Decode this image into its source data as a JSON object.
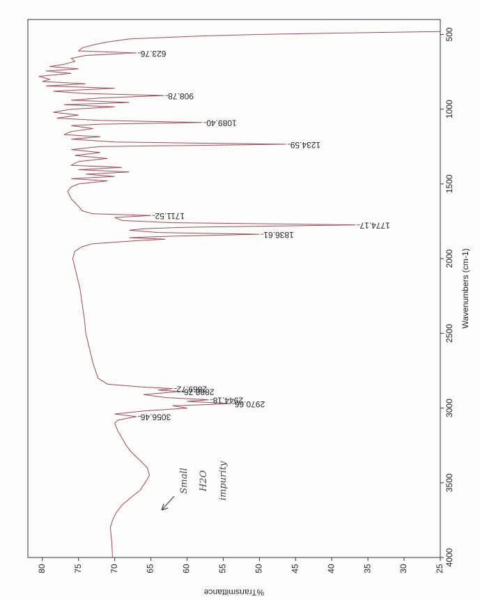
{
  "chart_data": {
    "type": "line",
    "x_label": "Wavenumbers (cm-1)",
    "y_label": "%Transmittance",
    "xlim": [
      4000,
      400
    ],
    "ylim": [
      82,
      25
    ],
    "xticks": [
      500,
      1000,
      1500,
      2000,
      2500,
      3000,
      3500,
      4000
    ],
    "yticks": [
      80,
      75,
      70,
      65,
      60,
      55,
      50,
      45,
      40,
      35,
      30,
      25
    ],
    "series": [
      {
        "color": "#9a4a56",
        "x": [
          4000,
          3900,
          3800,
          3750,
          3700,
          3650,
          3600,
          3550,
          3500,
          3450,
          3400,
          3350,
          3300,
          3250,
          3200,
          3150,
          3100,
          3080,
          3056.46,
          3040,
          3020,
          3000,
          2985,
          2970.66,
          2955,
          2944.18,
          2930,
          2910,
          2888.76,
          2880,
          2869.72,
          2860,
          2840,
          2800,
          2700,
          2600,
          2500,
          2400,
          2300,
          2200,
          2100,
          2000,
          1950,
          1920,
          1900,
          1880,
          1870,
          1860,
          1850,
          1836.61,
          1825,
          1810,
          1800,
          1790,
          1774.17,
          1760,
          1745,
          1725,
          1711.52,
          1700,
          1680,
          1650,
          1600,
          1550,
          1520,
          1500,
          1480,
          1465,
          1450,
          1435,
          1420,
          1405,
          1390,
          1375,
          1350,
          1330,
          1310,
          1290,
          1270,
          1250,
          1234.59,
          1220,
          1200,
          1185,
          1170,
          1150,
          1130,
          1110,
          1100,
          1089.4,
          1075,
          1060,
          1040,
          1020,
          1000,
          985,
          970,
          955,
          940,
          925,
          908.78,
          895,
          880,
          860,
          845,
          830,
          815,
          800,
          780,
          760,
          745,
          730,
          715,
          700,
          680,
          660,
          640,
          623.76,
          610,
          590,
          570,
          550,
          530,
          510,
          500,
          490,
          480
        ],
        "values": [
          70.3,
          70.4,
          70.6,
          70.3,
          69.8,
          69,
          67.8,
          66.5,
          65.8,
          65.2,
          65.5,
          66.5,
          67.6,
          68.4,
          69,
          69.6,
          70,
          69.5,
          67,
          70,
          66,
          60,
          62,
          54,
          60,
          57,
          63,
          66,
          61,
          64,
          62,
          66,
          71,
          72.3,
          73,
          73.5,
          74,
          74.2,
          74.5,
          74.8,
          75.3,
          75.8,
          75.5,
          74.5,
          73,
          67,
          63,
          68,
          62,
          50,
          64,
          68,
          66,
          60,
          36.7,
          62,
          69,
          70,
          65,
          73,
          74.5,
          75,
          76,
          76.5,
          76,
          75,
          71,
          76,
          70,
          74,
          68,
          75,
          69,
          76,
          75,
          71,
          75.5,
          72,
          76,
          72,
          46.3,
          70,
          76,
          72,
          77,
          76,
          73,
          76,
          72,
          57.9,
          72,
          78,
          75,
          78.5,
          76,
          70,
          77,
          68,
          76,
          72,
          63.2,
          74,
          78.5,
          70,
          79.5,
          74,
          80,
          79,
          80.5,
          76,
          79.5,
          75,
          79,
          77,
          75.5,
          76,
          74,
          67,
          75,
          74.5,
          73,
          71,
          68,
          58,
          50,
          38,
          25
        ]
      }
    ],
    "peaks": [
      {
        "label": "623.76",
        "x": 623.76,
        "y": 67
      },
      {
        "label": "908.78",
        "x": 908.78,
        "y": 63.2
      },
      {
        "label": "1089.40",
        "x": 1089.4,
        "y": 57.9
      },
      {
        "label": "1234.59",
        "x": 1234.59,
        "y": 46.3
      },
      {
        "label": "1711.52",
        "x": 1711.52,
        "y": 65
      },
      {
        "label": "1774.17",
        "x": 1774.17,
        "y": 36.7
      },
      {
        "label": "1836.61",
        "x": 1836.61,
        "y": 50
      },
      {
        "label": "2869.72",
        "x": 2869.72,
        "y": 62
      },
      {
        "label": "2888.76",
        "x": 2888.76,
        "y": 61
      },
      {
        "label": "2944.18",
        "x": 2944.18,
        "y": 57
      },
      {
        "label": "2970.66",
        "x": 2970.66,
        "y": 54
      },
      {
        "label": "3056.46",
        "x": 3056.46,
        "y": 67
      }
    ],
    "annotation": [
      "Small",
      "H2O",
      "impurity"
    ]
  }
}
